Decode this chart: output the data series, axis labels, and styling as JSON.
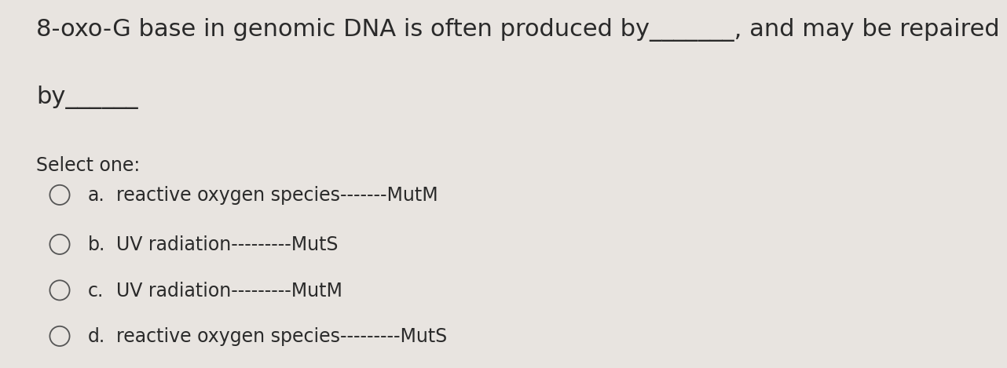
{
  "background_color": "#e8e4e0",
  "title_line1": "8-oxo-G base in genomic DNA is often produced by_______, and may be repaired",
  "title_line2": "by______",
  "title_fontsize": 22,
  "select_one_text": "Select one:",
  "select_one_fontsize": 17,
  "options": [
    {
      "label": "a.",
      "text": "reactive oxygen species-------MutM"
    },
    {
      "label": "b.",
      "text": "UV radiation---------MutS"
    },
    {
      "label": "c.",
      "text": "UV radiation---------MutM"
    },
    {
      "label": "d.",
      "text": "reactive oxygen species---------MutS"
    }
  ],
  "option_fontsize": 17,
  "text_color": "#2a2a2a",
  "circle_color": "#555555"
}
